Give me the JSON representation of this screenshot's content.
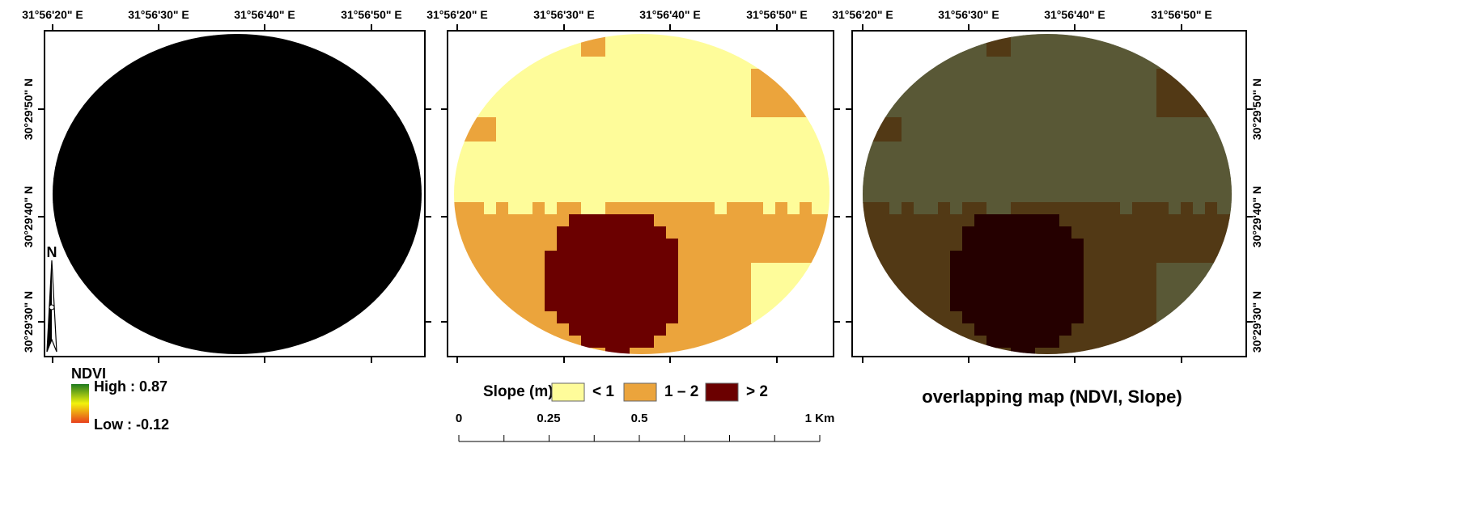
{
  "panels": [
    {
      "longitude_labels": [
        "31°56'20\" E",
        "31°56'30\" E",
        "31°56'40\" E",
        "31°56'50\" E"
      ],
      "latitude_labels": [
        "30°29'50\" N",
        "30°29'40\" N",
        "30°29'30\" N"
      ]
    },
    {
      "longitude_labels": [
        "31°56'20\" E",
        "31°56'30\" E",
        "31°56'40\" E",
        "31°56'50\" E"
      ]
    },
    {
      "longitude_labels": [
        "31°56'20\" E",
        "31°56'30\" E",
        "31°56'40\" E",
        "31°56'50\" E"
      ],
      "latitude_labels": [
        "30°29'50\" N",
        "30°29'40\" N",
        "30°29'30\" N"
      ]
    }
  ],
  "north_arrow": "N",
  "ndvi_legend": {
    "title": "NDVI",
    "high": "High : 0.87",
    "low": "Low : -0.12"
  },
  "slope_legend": {
    "title": "Slope (m)",
    "classes": [
      "< 1",
      "1 – 2",
      "> 2"
    ]
  },
  "scale_bar": [
    "0",
    "0.25",
    "0.5",
    "1 Km"
  ],
  "caption": "overlapping map (NDVI, Slope)"
}
